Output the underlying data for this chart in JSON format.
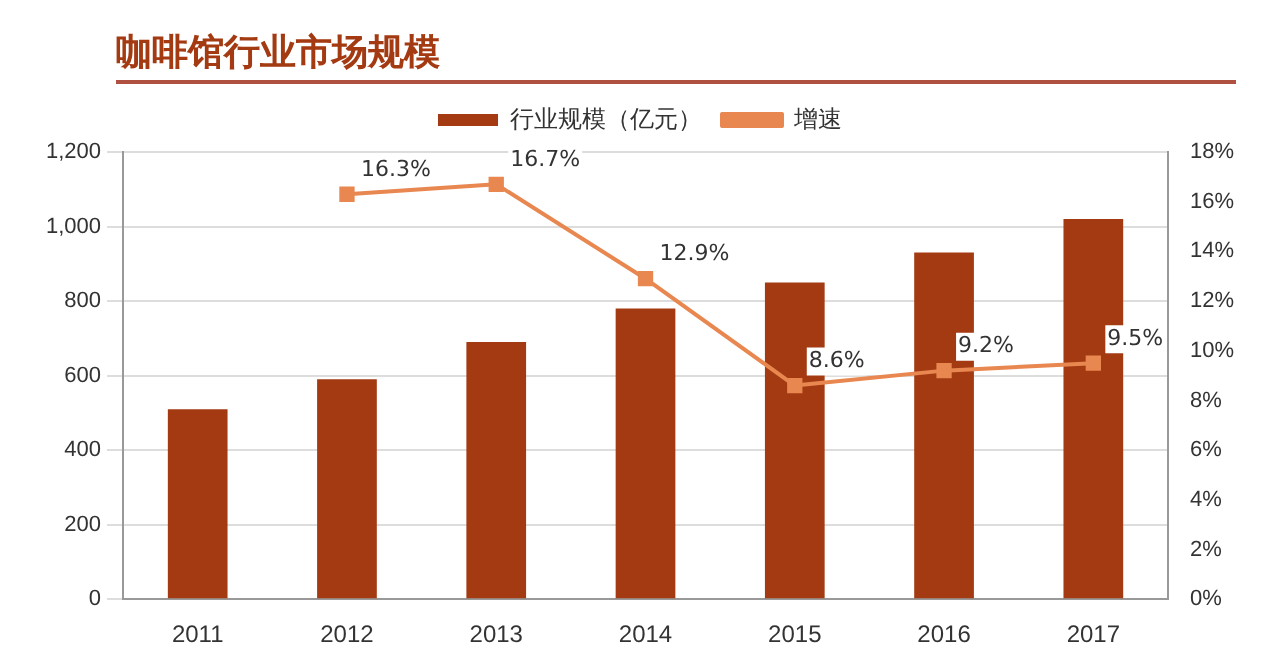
{
  "chart_data": {
    "type": "bar",
    "title": "咖啡馆行业市场规模",
    "categories": [
      "2011",
      "2012",
      "2013",
      "2014",
      "2015",
      "2016",
      "2017"
    ],
    "series": [
      {
        "name": "行业规模（亿元）",
        "color": "#a33a12",
        "values": [
          510,
          590,
          690,
          780,
          850,
          930,
          1020
        ]
      },
      {
        "name": "增速",
        "type": "line",
        "axis": "y2",
        "color": "#e8874f",
        "values": [
          null,
          16.3,
          16.7,
          12.9,
          8.6,
          9.2,
          9.5
        ],
        "value_labels": [
          null,
          "16.3%",
          "16.7%",
          "12.9%",
          "8.6%",
          "9.2%",
          "9.5%"
        ]
      }
    ],
    "ylim": [
      0,
      1200
    ],
    "yticks": [
      0,
      {
        "value": 200,
        "label": "200"
      },
      {
        "value": 400,
        "label": "400"
      },
      {
        "value": 600,
        "label": "600"
      },
      {
        "value": 800,
        "label": "800"
      },
      {
        "value": 1000,
        "label": "1,000"
      },
      {
        "value": 1200,
        "label": "1,200"
      }
    ],
    "y2lim": [
      0,
      18
    ],
    "y2ticks": [
      {
        "value": 0,
        "label": "0%"
      },
      {
        "value": 2,
        "label": "2%"
      },
      {
        "value": 4,
        "label": "4%"
      },
      {
        "value": 6,
        "label": "6%"
      },
      {
        "value": 8,
        "label": "8%"
      },
      {
        "value": 10,
        "label": "10%"
      },
      {
        "value": 12,
        "label": "12%"
      },
      {
        "value": 14,
        "label": "14%"
      },
      {
        "value": 16,
        "label": "16%"
      },
      {
        "value": 18,
        "label": "18%"
      }
    ],
    "grid": "y",
    "legend": "top",
    "marker": "square"
  }
}
